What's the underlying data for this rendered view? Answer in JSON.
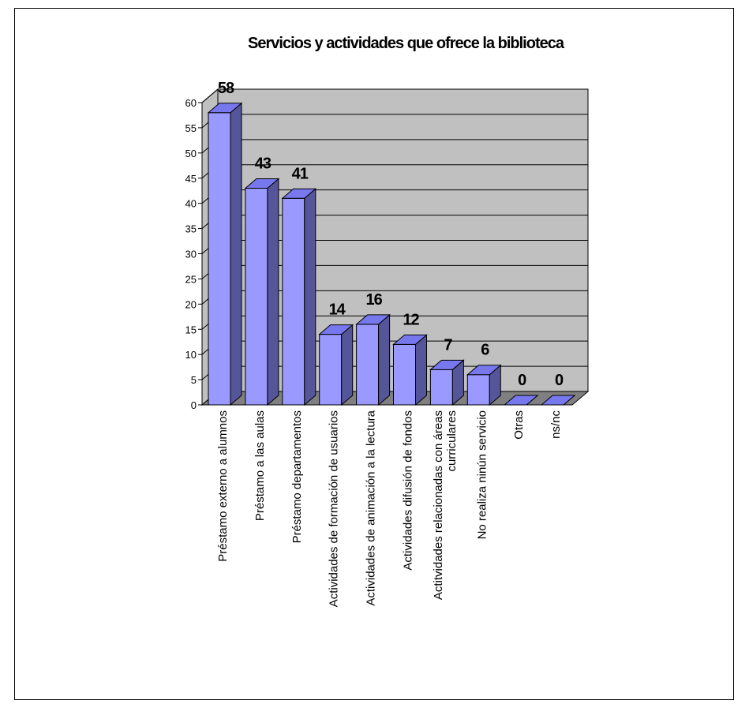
{
  "chart_data": {
    "type": "bar",
    "title": "Servicios y actividades que ofrece la biblioteca",
    "categories": [
      "Préstamo externo a alumnos",
      "Préstamo a las aulas",
      "Préstamo departamentos",
      "Actividades de formación de usuarios",
      "Actividades de animación a la lectura",
      "Actividades difusión de fondos",
      "Actitvidades relacionadas con áreas curriculares",
      "No realiza ninún servicio",
      "Otras",
      "ns/nc"
    ],
    "values": [
      58,
      43,
      41,
      14,
      16,
      12,
      7,
      6,
      0,
      0
    ],
    "ylim": [
      0,
      60
    ],
    "yticks": [
      0,
      5,
      10,
      15,
      20,
      25,
      30,
      35,
      40,
      45,
      50,
      55,
      60
    ],
    "grid": true,
    "legend": "none",
    "colors": {
      "bar_front": "#9999ff",
      "bar_top": "#7777ee",
      "bar_side": "#555599",
      "wall": "#c0c0c0",
      "floor": "#808080"
    }
  }
}
